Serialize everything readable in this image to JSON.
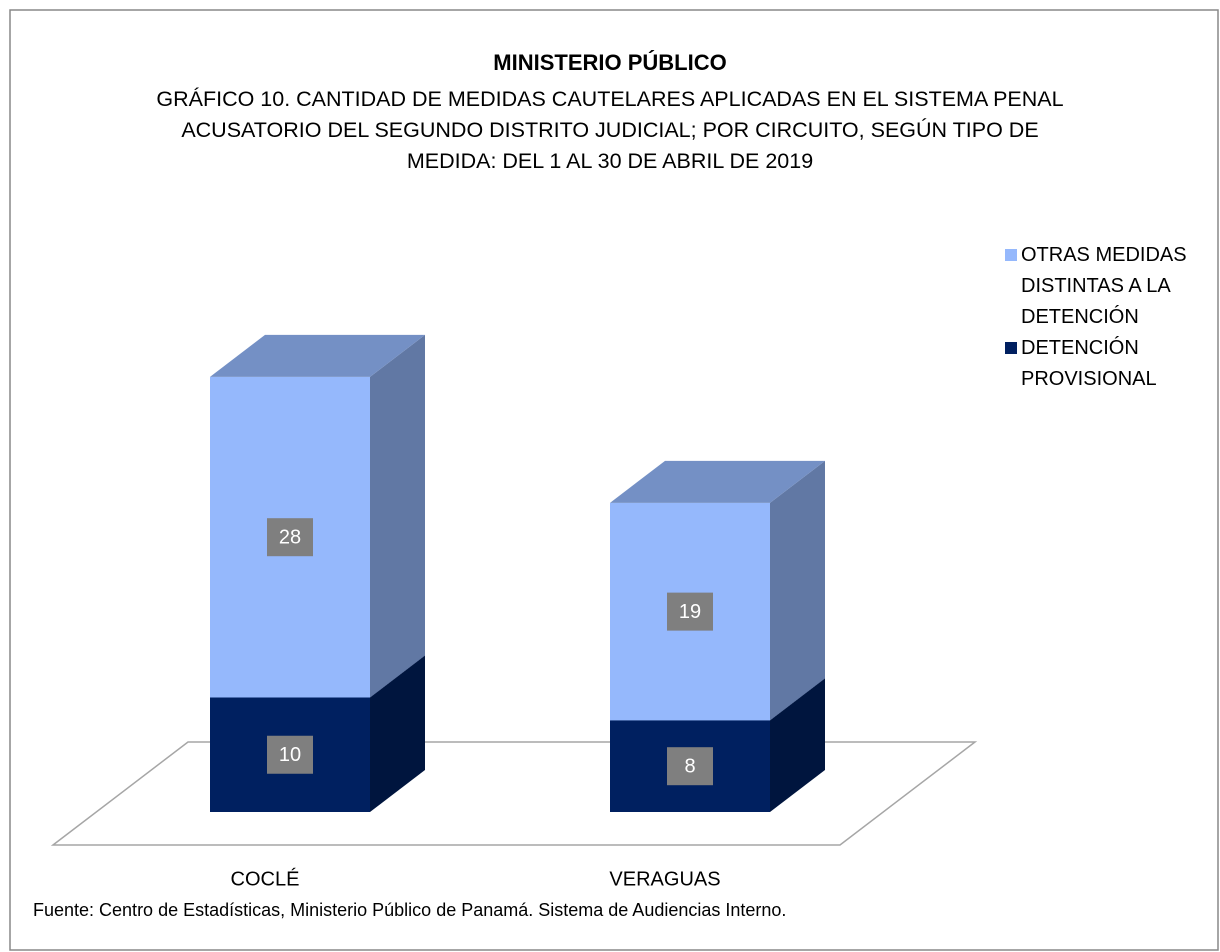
{
  "chart_data": {
    "type": "bar3d_stacked",
    "title": "MINISTERIO PÚBLICO",
    "subtitle": "GRÁFICO 10. CANTIDAD DE MEDIDAS CAUTELARES APLICADAS EN EL SISTEMA PENAL ACUSATORIO DEL SEGUNDO DISTRITO JUDICIAL; POR CIRCUITO, SEGÚN TIPO DE MEDIDA: DEL 1 AL 30 DE ABRIL DE 2019",
    "categories": [
      "COCLÉ",
      "VERAGUAS"
    ],
    "series": [
      {
        "name": "DETENCIÓN PROVISIONAL",
        "color": "#002060",
        "values": [
          10,
          8
        ]
      },
      {
        "name": "OTRAS MEDIDAS DISTINTAS A LA DETENCIÓN",
        "color": "#95b8fc",
        "values": [
          28,
          19
        ]
      }
    ],
    "ylim": [
      0,
      40
    ],
    "source": "Fuente: Centro de Estadísticas, Ministerio Público de Panamá. Sistema de Audiencias Interno."
  }
}
